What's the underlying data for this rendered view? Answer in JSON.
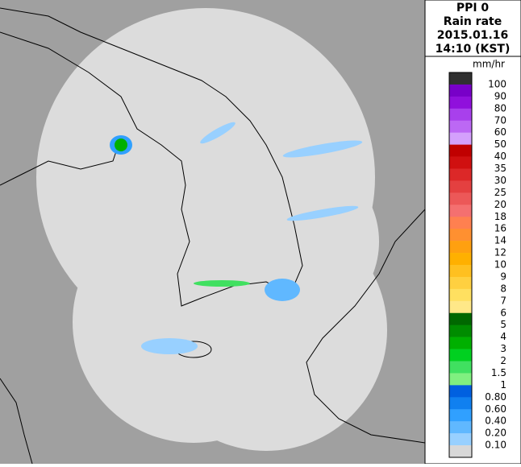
{
  "header": {
    "lines": [
      "PPI 0",
      "Rain rate",
      "2015.01.16",
      "14:10 (KST)"
    ]
  },
  "legend": {
    "unit": "mm/hr",
    "labels": [
      "100",
      "90",
      "80",
      "70",
      "60",
      "50",
      "40",
      "35",
      "30",
      "25",
      "20",
      "18",
      "16",
      "14",
      "12",
      "10",
      "9",
      "8",
      "7",
      "6",
      "5",
      "4",
      "3",
      "2",
      "1.5",
      "1",
      "0.80",
      "0.60",
      "0.40",
      "0.20",
      "0.10"
    ],
    "colors": [
      "#303030",
      "#7800c8",
      "#9010dc",
      "#a840ec",
      "#bc68f4",
      "#d4a0fc",
      "#c00000",
      "#d01010",
      "#dc2828",
      "#e44040",
      "#ec5858",
      "#f47070",
      "#ff8050",
      "#ff9030",
      "#ffa010",
      "#ffb000",
      "#ffc020",
      "#ffd040",
      "#ffe060",
      "#ffe888",
      "#006800",
      "#008c00",
      "#00b000",
      "#00d020",
      "#40e060",
      "#80f080",
      "#0060e0",
      "#1080f0",
      "#30a0ff",
      "#60b8ff",
      "#98d0ff",
      "#d8d8d8"
    ]
  }
}
